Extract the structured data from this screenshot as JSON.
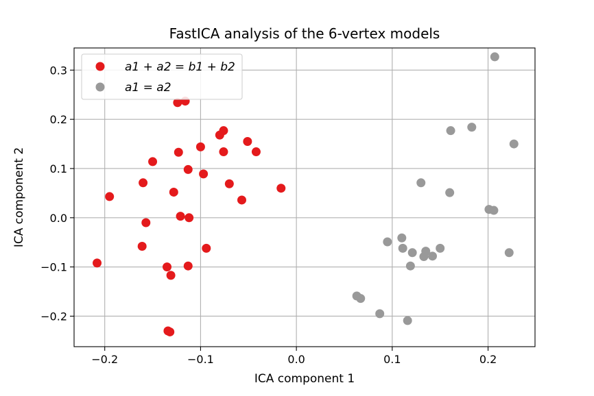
{
  "chart_data": {
    "type": "scatter",
    "title": "FastICA analysis of the 6-vertex models",
    "xlabel": "ICA component 1",
    "ylabel": "ICA component 2",
    "xlim": [
      -0.232,
      0.249
    ],
    "ylim": [
      -0.262,
      0.345
    ],
    "xticks": [
      -0.2,
      -0.1,
      0.0,
      0.1,
      0.2
    ],
    "xtick_labels": [
      "−0.2",
      "−0.1",
      "0.0",
      "0.1",
      "0.2"
    ],
    "yticks": [
      -0.2,
      -0.1,
      0.0,
      0.1,
      0.2,
      0.3
    ],
    "ytick_labels": [
      "−0.2",
      "−0.1",
      "0.0",
      "0.1",
      "0.2",
      "0.3"
    ],
    "grid": true,
    "legend_position": "top-left",
    "series": [
      {
        "name": "a1 + a2 = b1 + b2",
        "color": "#e41a1c",
        "points": [
          [
            -0.124,
            0.234
          ],
          [
            -0.116,
            0.237
          ],
          [
            -0.076,
            0.177
          ],
          [
            -0.08,
            0.168
          ],
          [
            -0.051,
            0.155
          ],
          [
            -0.1,
            0.144
          ],
          [
            -0.042,
            0.134
          ],
          [
            -0.076,
            0.134
          ],
          [
            -0.123,
            0.133
          ],
          [
            -0.15,
            0.114
          ],
          [
            -0.113,
            0.098
          ],
          [
            -0.097,
            0.089
          ],
          [
            -0.16,
            0.071
          ],
          [
            -0.07,
            0.069
          ],
          [
            -0.016,
            0.06
          ],
          [
            -0.128,
            0.052
          ],
          [
            -0.195,
            0.043
          ],
          [
            -0.057,
            0.036
          ],
          [
            -0.121,
            0.003
          ],
          [
            -0.112,
            0.0
          ],
          [
            -0.157,
            -0.01
          ],
          [
            -0.161,
            -0.058
          ],
          [
            -0.094,
            -0.062
          ],
          [
            -0.208,
            -0.092
          ],
          [
            -0.113,
            -0.098
          ],
          [
            -0.135,
            -0.1
          ],
          [
            -0.131,
            -0.117
          ],
          [
            -0.134,
            -0.23
          ],
          [
            -0.132,
            -0.232
          ]
        ]
      },
      {
        "name": "a1 = a2",
        "color": "#999999",
        "points": [
          [
            0.207,
            0.327
          ],
          [
            0.183,
            0.184
          ],
          [
            0.161,
            0.177
          ],
          [
            0.227,
            0.15
          ],
          [
            0.13,
            0.071
          ],
          [
            0.16,
            0.051
          ],
          [
            0.201,
            0.017
          ],
          [
            0.206,
            0.015
          ],
          [
            0.095,
            -0.049
          ],
          [
            0.11,
            -0.041
          ],
          [
            0.111,
            -0.062
          ],
          [
            0.15,
            -0.062
          ],
          [
            0.121,
            -0.071
          ],
          [
            0.135,
            -0.068
          ],
          [
            0.222,
            -0.071
          ],
          [
            0.133,
            -0.079
          ],
          [
            0.142,
            -0.078
          ],
          [
            0.119,
            -0.098
          ],
          [
            0.063,
            -0.159
          ],
          [
            0.067,
            -0.164
          ],
          [
            0.087,
            -0.195
          ],
          [
            0.116,
            -0.209
          ]
        ]
      }
    ]
  }
}
